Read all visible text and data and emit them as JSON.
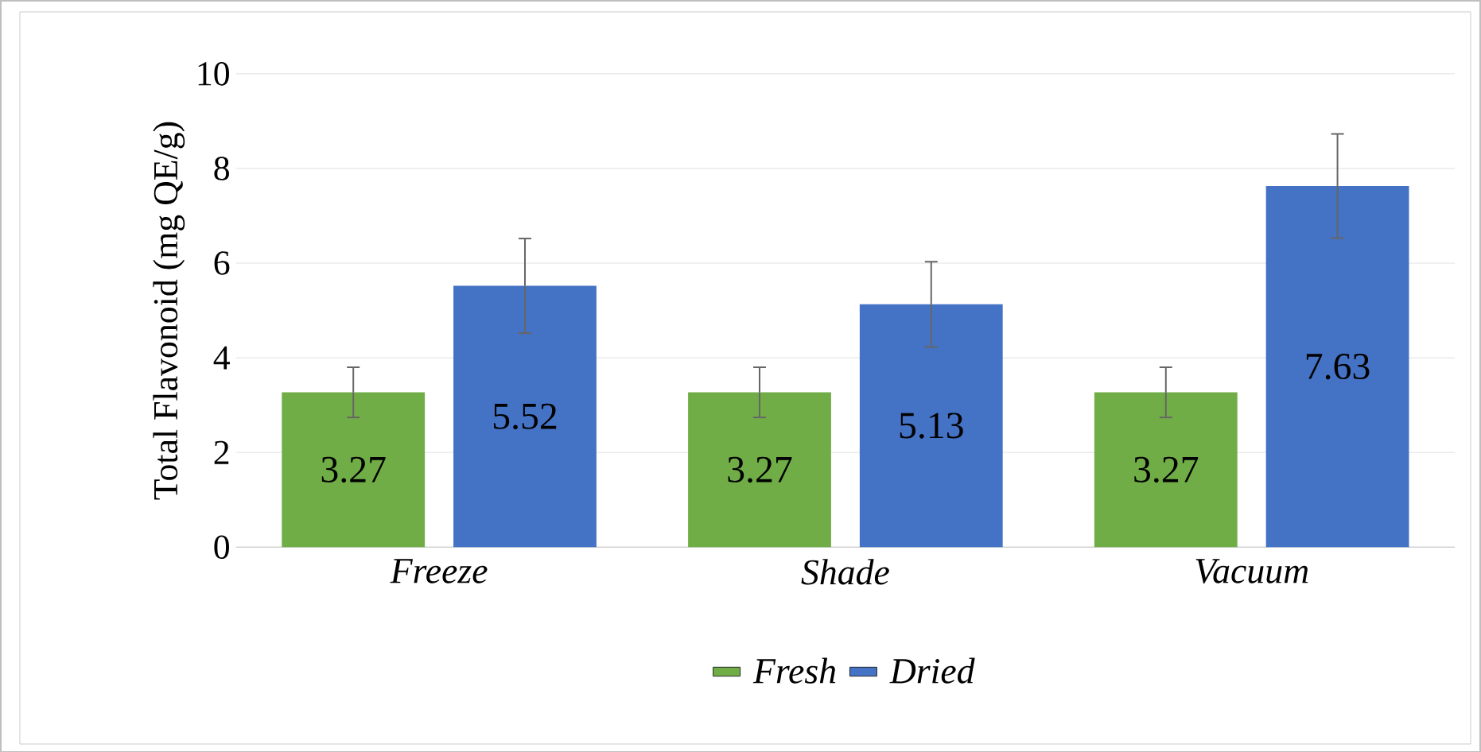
{
  "chart_data": {
    "type": "bar",
    "ylabel": "Total Flavonoid (mg QE/g)",
    "categories": [
      "Freeze",
      "Shade",
      "Vacuum"
    ],
    "series": [
      {
        "name": "Fresh",
        "color": "#70ad47",
        "values": [
          3.27,
          3.27,
          3.27
        ],
        "errors": [
          0.53,
          0.53,
          0.53
        ],
        "value_labels": [
          "3.27",
          "3.27",
          "3.27"
        ]
      },
      {
        "name": "Dried",
        "color": "#4472c4",
        "values": [
          5.52,
          5.13,
          7.63
        ],
        "errors": [
          1.0,
          0.9,
          1.1
        ],
        "value_labels": [
          "5.52",
          "5.13",
          "7.63"
        ]
      }
    ],
    "ylim": [
      0,
      10
    ],
    "yticks": [
      0,
      2,
      4,
      6,
      8,
      10
    ],
    "grid": "y",
    "legend": "bottom"
  }
}
